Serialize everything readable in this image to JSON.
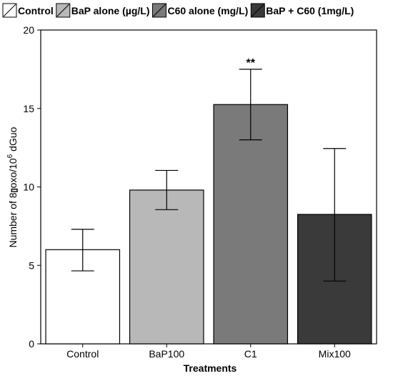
{
  "chart_data": {
    "type": "bar",
    "title": "",
    "xlabel": "Treatments",
    "ylabel_parts": [
      "Number of 8",
      "oxo/10",
      "6",
      " dGuo"
    ],
    "ylim": [
      0,
      20
    ],
    "yticks": [
      0,
      5,
      10,
      15,
      20
    ],
    "categories": [
      "Control",
      "BaP100",
      "C1",
      "Mix100"
    ],
    "values": [
      6.0,
      9.8,
      15.25,
      8.25
    ],
    "error_low": [
      4.65,
      8.55,
      13.0,
      4.0
    ],
    "error_high": [
      7.3,
      11.05,
      17.5,
      12.45
    ],
    "bar_colors": [
      "#ffffff",
      "#b8b8b8",
      "#7a7a7a",
      "#3a3a3a"
    ],
    "annotations": [
      {
        "category": "C1",
        "text": "**"
      }
    ],
    "legend": {
      "position": "top",
      "entries": [
        {
          "label": "Control",
          "color": "#ffffff"
        },
        {
          "label": "BaP alone (µg/L)",
          "color": "#b8b8b8"
        },
        {
          "label": "C60 alone (mg/L)",
          "color": "#7a7a7a"
        },
        {
          "label": "BaP + C60 (1mg/L)",
          "color": "#3a3a3a"
        }
      ]
    },
    "grid": false
  }
}
